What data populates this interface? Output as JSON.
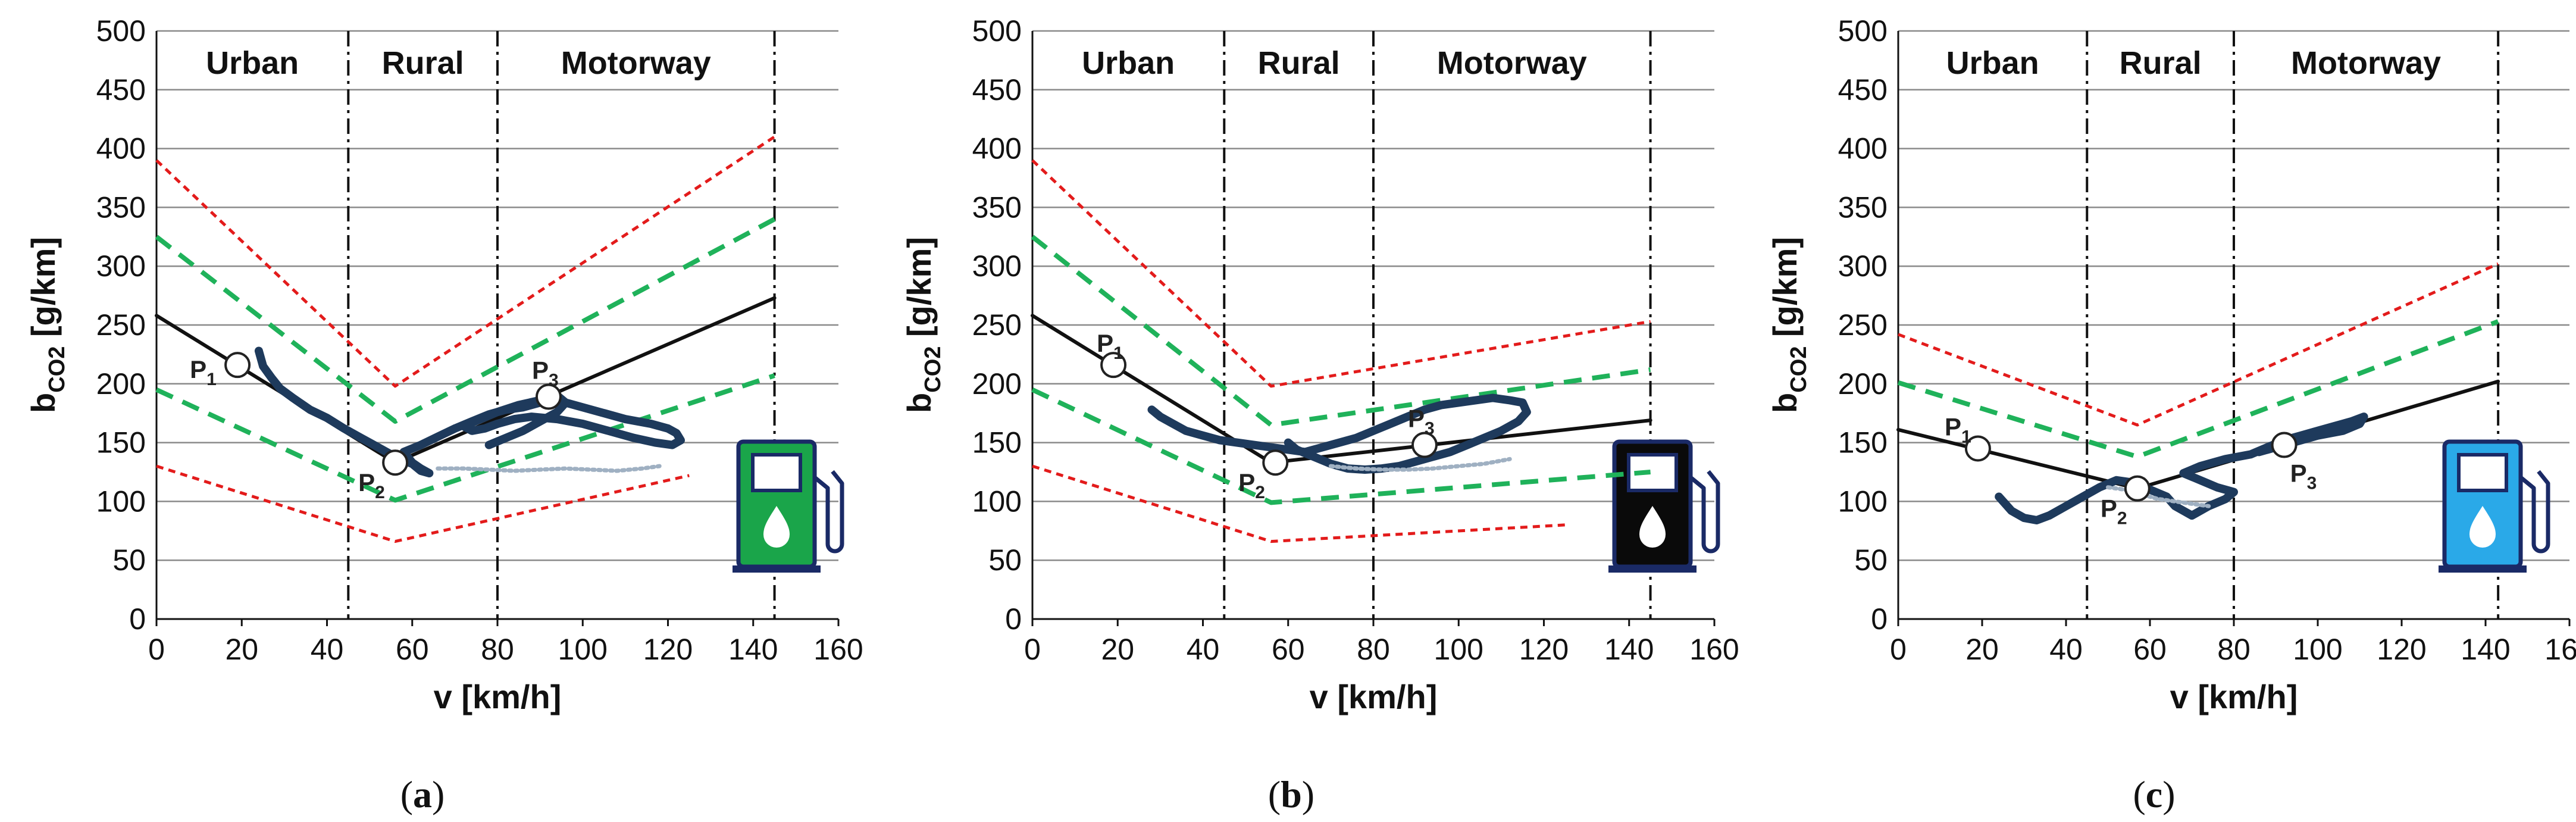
{
  "chart_data": [
    {
      "id": "a",
      "type": "line",
      "caption_open": "(",
      "caption_letter": "a",
      "caption_close": ")",
      "xlabel": "v [km/h]",
      "ylabel": "b",
      "ylabel_sub": "CO2",
      "ylabel_unit": " [g/km]",
      "xlim": [
        0,
        160
      ],
      "ylim": [
        0,
        500
      ],
      "xticks": [
        "0",
        "20",
        "40",
        "60",
        "80",
        "100",
        "120",
        "140",
        "160"
      ],
      "yticks": [
        "0",
        "50",
        "100",
        "150",
        "200",
        "250",
        "300",
        "350",
        "400",
        "450",
        "500"
      ],
      "grid": true,
      "zones": [
        "Urban",
        "Rural",
        "Motorway"
      ],
      "zone_boundaries": [
        45,
        80,
        145
      ],
      "pump_color": "#1aa54a",
      "series": [
        {
          "name": "upper limit",
          "style": "red-dotted",
          "color": "#e31b1b",
          "x": [
            0,
            56,
            145
          ],
          "y": [
            390,
            198,
            410
          ]
        },
        {
          "name": "lower limit",
          "style": "red-dotted",
          "color": "#e31b1b",
          "x": [
            0,
            56,
            125
          ],
          "y": [
            130,
            66,
            122
          ]
        },
        {
          "name": "upper tolerance",
          "style": "green-dashed",
          "color": "#1fb25a",
          "x": [
            0,
            56,
            145
          ],
          "y": [
            325,
            168,
            340
          ]
        },
        {
          "name": "lower tolerance",
          "style": "green-dashed",
          "color": "#1fb25a",
          "x": [
            0,
            56,
            145
          ],
          "y": [
            195,
            101,
            207
          ]
        },
        {
          "name": "reference curve",
          "style": "black-solid",
          "color": "#111111",
          "x": [
            0,
            56,
            145
          ],
          "y": [
            258,
            133,
            273
          ]
        },
        {
          "name": "measured",
          "style": "navy-trace",
          "color": "#1e3a5c",
          "x": [
            24,
            25,
            27,
            29,
            32,
            36,
            40,
            44,
            48,
            52,
            55,
            57,
            60,
            62,
            64,
            62,
            60,
            58,
            62,
            66,
            70,
            74,
            78,
            82,
            86,
            90,
            94,
            98,
            104,
            110,
            116,
            120,
            122,
            123,
            121,
            117,
            112,
            106,
            100,
            94,
            88,
            84,
            80,
            77,
            74,
            72,
            76,
            80,
            85,
            90,
            94,
            96,
            94,
            90,
            86,
            82,
            78
          ],
          "y": [
            228,
            215,
            205,
            196,
            188,
            178,
            171,
            162,
            154,
            146,
            140,
            136,
            132,
            126,
            124,
            128,
            133,
            142,
            148,
            155,
            162,
            168,
            174,
            178,
            180,
            184,
            186,
            182,
            176,
            170,
            166,
            162,
            158,
            152,
            148,
            150,
            154,
            160,
            166,
            170,
            172,
            170,
            166,
            162,
            160,
            164,
            170,
            176,
            182,
            186,
            190,
            184,
            176,
            168,
            160,
            154,
            148
          ]
        },
        {
          "name": "measured light",
          "style": "light-trace",
          "color": "#9fb0c2",
          "x": [
            66,
            72,
            78,
            84,
            90,
            96,
            102,
            108,
            114,
            118
          ],
          "y": [
            128,
            128,
            127,
            126,
            127,
            128,
            127,
            126,
            128,
            130
          ]
        }
      ],
      "points": [
        {
          "label": "P",
          "sub": "1",
          "x": 19,
          "y": 216
        },
        {
          "label": "P",
          "sub": "2",
          "x": 56,
          "y": 133
        },
        {
          "label": "P",
          "sub": "3",
          "x": 92,
          "y": 189
        }
      ]
    },
    {
      "id": "b",
      "type": "line",
      "caption_open": "(",
      "caption_letter": "b",
      "caption_close": ")",
      "xlabel": "v [km/h]",
      "ylabel": "b",
      "ylabel_sub": "CO2",
      "ylabel_unit": " [g/km]",
      "xlim": [
        0,
        160
      ],
      "ylim": [
        0,
        500
      ],
      "xticks": [
        "0",
        "20",
        "40",
        "60",
        "80",
        "100",
        "120",
        "140",
        "160"
      ],
      "yticks": [
        "0",
        "50",
        "100",
        "150",
        "200",
        "250",
        "300",
        "350",
        "400",
        "450",
        "500"
      ],
      "grid": true,
      "zones": [
        "Urban",
        "Rural",
        "Motorway"
      ],
      "zone_boundaries": [
        45,
        80,
        145
      ],
      "pump_color": "#0a0a0a",
      "series": [
        {
          "name": "upper limit",
          "style": "red-dotted",
          "color": "#e31b1b",
          "x": [
            0,
            56,
            145
          ],
          "y": [
            390,
            198,
            253
          ]
        },
        {
          "name": "lower limit",
          "style": "red-dotted",
          "color": "#e31b1b",
          "x": [
            0,
            56,
            125
          ],
          "y": [
            130,
            66,
            80
          ]
        },
        {
          "name": "upper tolerance",
          "style": "green-dashed",
          "color": "#1fb25a",
          "x": [
            0,
            56,
            145
          ],
          "y": [
            325,
            165,
            212
          ]
        },
        {
          "name": "lower tolerance",
          "style": "green-dashed",
          "color": "#1fb25a",
          "x": [
            0,
            56,
            145
          ],
          "y": [
            195,
            99,
            125
          ]
        },
        {
          "name": "reference curve",
          "style": "black-solid",
          "color": "#111111",
          "x": [
            0,
            56,
            145
          ],
          "y": [
            258,
            133,
            169
          ]
        },
        {
          "name": "measured",
          "style": "navy-trace",
          "color": "#1e3a5c",
          "x": [
            28,
            30,
            33,
            36,
            40,
            44,
            48,
            52,
            56,
            60,
            64,
            68,
            72,
            76,
            80,
            84,
            88,
            92,
            96,
            100,
            104,
            108,
            112,
            115,
            116,
            114,
            110,
            106,
            102,
            98,
            94,
            90,
            86,
            82,
            78,
            74,
            70,
            66,
            62,
            60
          ],
          "y": [
            178,
            172,
            166,
            160,
            156,
            152,
            150,
            148,
            146,
            144,
            142,
            146,
            150,
            154,
            160,
            166,
            172,
            178,
            182,
            184,
            186,
            188,
            186,
            184,
            176,
            168,
            160,
            154,
            148,
            142,
            138,
            134,
            130,
            128,
            127,
            128,
            132,
            138,
            144,
            150
          ]
        },
        {
          "name": "measured light",
          "style": "light-trace",
          "color": "#9fb0c2",
          "x": [
            70,
            76,
            82,
            88,
            94,
            100,
            106,
            112
          ],
          "y": [
            130,
            128,
            127,
            127,
            128,
            130,
            132,
            136
          ]
        }
      ],
      "points": [
        {
          "label": "P",
          "sub": "1",
          "x": 19,
          "y": 216
        },
        {
          "label": "P",
          "sub": "2",
          "x": 57,
          "y": 133
        },
        {
          "label": "P",
          "sub": "3",
          "x": 92,
          "y": 148
        }
      ]
    },
    {
      "id": "c",
      "type": "line",
      "caption_open": "(",
      "caption_letter": "c",
      "caption_close": ")",
      "xlabel": "v [km/h]",
      "ylabel": "b",
      "ylabel_sub": "CO2",
      "ylabel_unit": " [g/km]",
      "xlim": [
        0,
        160
      ],
      "ylim": [
        0,
        500
      ],
      "xticks": [
        "0",
        "20",
        "40",
        "60",
        "80",
        "100",
        "120",
        "140",
        "160"
      ],
      "yticks": [
        "0",
        "50",
        "100",
        "150",
        "200",
        "250",
        "300",
        "350",
        "400",
        "450",
        "500"
      ],
      "grid": true,
      "zones": [
        "Urban",
        "Rural",
        "Motorway"
      ],
      "zone_boundaries": [
        45,
        80,
        143
      ],
      "pump_color": "#2aa9e8",
      "series": [
        {
          "name": "upper limit",
          "style": "red-dotted",
          "color": "#e31b1b",
          "x": [
            0,
            57,
            143
          ],
          "y": [
            242,
            165,
            302
          ]
        },
        {
          "name": "upper tolerance",
          "style": "green-dashed",
          "color": "#1fb25a",
          "x": [
            0,
            57,
            143
          ],
          "y": [
            201,
            138,
            253
          ]
        },
        {
          "name": "reference curve",
          "style": "black-solid",
          "color": "#111111",
          "x": [
            0,
            57,
            143
          ],
          "y": [
            161,
            111,
            202
          ]
        },
        {
          "name": "measured",
          "style": "navy-trace",
          "color": "#1e3a5c",
          "x": [
            24,
            25,
            27,
            30,
            33,
            36,
            40,
            44,
            48,
            52,
            56,
            60,
            64,
            66,
            70,
            74,
            78,
            80,
            76,
            72,
            68,
            72,
            78,
            84,
            88,
            92,
            96,
            100,
            104,
            108,
            111,
            110,
            106,
            100,
            94,
            90,
            86
          ],
          "y": [
            104,
            100,
            92,
            86,
            84,
            88,
            96,
            104,
            112,
            118,
            116,
            110,
            104,
            96,
            88,
            96,
            102,
            108,
            112,
            118,
            124,
            130,
            136,
            140,
            146,
            152,
            156,
            160,
            164,
            168,
            172,
            166,
            160,
            156,
            150,
            146,
            142
          ]
        },
        {
          "name": "measured light",
          "style": "light-trace",
          "color": "#9fb0c2",
          "x": [
            50,
            54,
            58,
            62,
            66,
            70,
            74
          ],
          "y": [
            112,
            110,
            106,
            102,
            100,
            98,
            96
          ]
        }
      ],
      "points": [
        {
          "label": "P",
          "sub": "1",
          "x": 19,
          "y": 145
        },
        {
          "label": "P",
          "sub": "2",
          "x": 57,
          "y": 111
        },
        {
          "label": "P",
          "sub": "3",
          "x": 92,
          "y": 148
        }
      ]
    }
  ]
}
